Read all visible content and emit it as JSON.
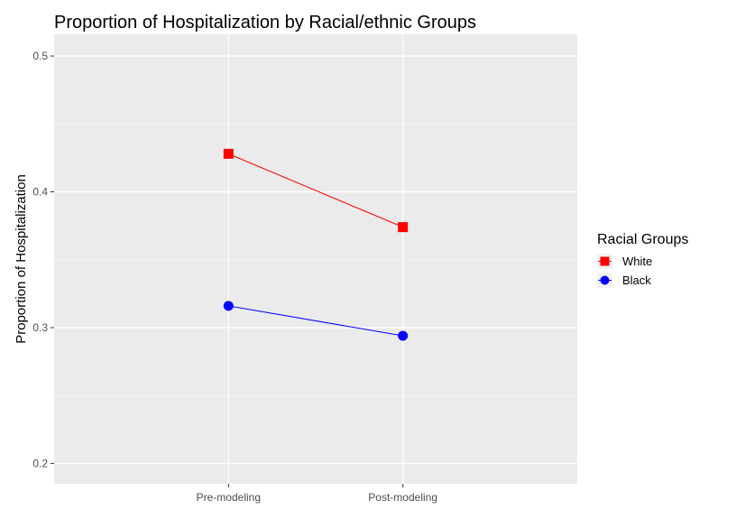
{
  "chart_data": {
    "type": "line",
    "title": "Proportion of Hospitalization by Racial/ethnic Groups",
    "xlabel": "",
    "ylabel": "Proportion of Hospitalization",
    "categories": [
      "Pre-modeling",
      "Post-modeling"
    ],
    "ylim": [
      0.185,
      0.516
    ],
    "yticks": [
      0.2,
      0.3,
      0.4,
      0.5
    ],
    "ytick_labels": [
      "0.2",
      "0.3",
      "0.4",
      "0.5"
    ],
    "grid": true,
    "legend": {
      "title": "Racial Groups",
      "position": "right"
    },
    "series": [
      {
        "name": "White",
        "values": [
          0.428,
          0.374
        ],
        "color": "#ff0000",
        "marker": "square"
      },
      {
        "name": "Black",
        "values": [
          0.316,
          0.294
        ],
        "color": "#0000ff",
        "marker": "circle"
      }
    ]
  },
  "colors": {
    "panel": "#ebebeb",
    "grid_major": "#ffffff",
    "grid_minor": "#f5f5f5",
    "tick": "#333333"
  }
}
